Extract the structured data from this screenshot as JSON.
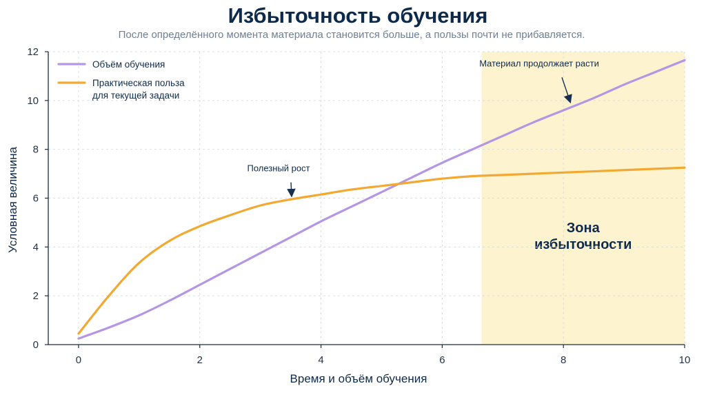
{
  "colors": {
    "learning_volume": "#b596e4",
    "practical_benefit": "#f2a932",
    "zone_fill": "#fdf3cf",
    "text": "#0e2a4a",
    "annotation_arrow": "#17304f"
  },
  "chart_data": {
    "type": "line",
    "title": "Избыточность обучения",
    "subtitle": "После определённого момента материала становится больше, а пользы почти не прибавляется.",
    "xlabel": "Время и объём обучения",
    "ylabel": "Условная величина",
    "xlim": [
      -0.5,
      10
    ],
    "ylim": [
      0,
      12
    ],
    "x_ticks": [
      "0",
      "2",
      "4",
      "6",
      "8",
      "10"
    ],
    "y_ticks": [
      "0",
      "2",
      "4",
      "6",
      "8",
      "10",
      "12"
    ],
    "grid": true,
    "legend_position": "top-left",
    "x": [
      0,
      0.5,
      1,
      1.5,
      2,
      2.5,
      3,
      3.5,
      4,
      4.5,
      5,
      5.5,
      6,
      6.5,
      7,
      7.5,
      8,
      8.5,
      9,
      9.5,
      10
    ],
    "series": [
      {
        "name": "Объём обучения",
        "color": "#b596e4",
        "values": [
          0.25,
          0.7,
          1.2,
          1.8,
          2.45,
          3.1,
          3.75,
          4.4,
          5.05,
          5.65,
          6.25,
          6.85,
          7.45,
          8.0,
          8.55,
          9.1,
          9.6,
          10.1,
          10.65,
          11.15,
          11.65
        ]
      },
      {
        "name": "Практическая польза для текущей задачи",
        "name_lines": [
          "Практическая польза",
          "для текущей задачи"
        ],
        "color": "#f2a932",
        "values": [
          0.45,
          2.0,
          3.35,
          4.25,
          4.85,
          5.3,
          5.7,
          5.95,
          6.15,
          6.35,
          6.5,
          6.65,
          6.8,
          6.9,
          6.95,
          7.0,
          7.05,
          7.1,
          7.15,
          7.2,
          7.25
        ]
      }
    ],
    "shaded_region": {
      "x_start": 6.65,
      "x_end": 10,
      "label_lines": [
        "Зона",
        "избыточности"
      ]
    },
    "annotations": [
      {
        "text": "Полезный рост",
        "point": [
          3.55,
          5.95
        ],
        "text_anchor": [
          3.3,
          7.1
        ]
      },
      {
        "text": "Материал продолжает расти",
        "point": [
          8.15,
          9.8
        ],
        "text_anchor": [
          7.6,
          11.4
        ]
      }
    ]
  }
}
